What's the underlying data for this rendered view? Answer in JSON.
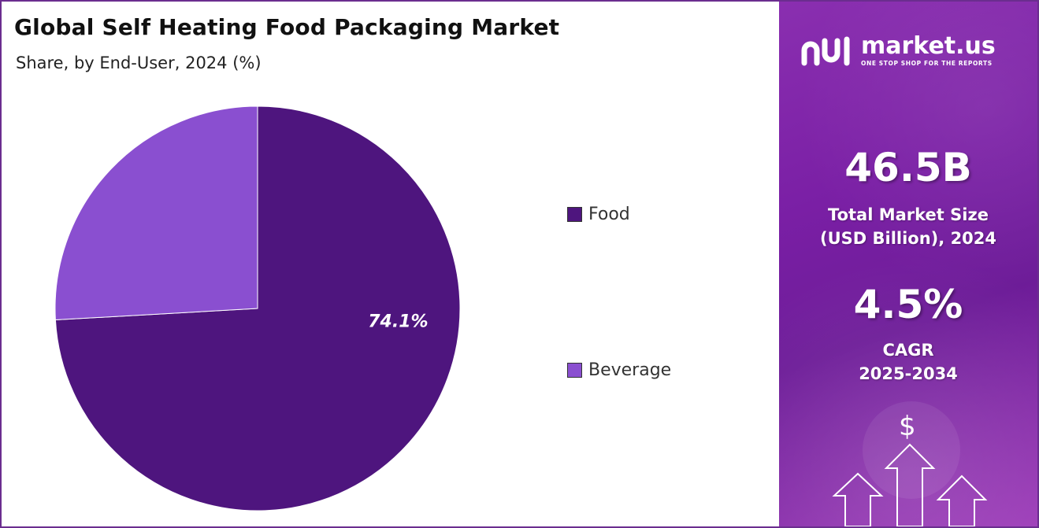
{
  "header": {
    "title": "Global Self Heating Food Packaging Market",
    "subtitle": "Share, by End-User, 2024 (%)"
  },
  "chart_data": {
    "type": "pie",
    "title": "Global Self Heating Food Packaging Market",
    "subtitle": "Share, by End-User, 2024 (%)",
    "categories": [
      "Food",
      "Beverage"
    ],
    "values": [
      74.1,
      25.9
    ],
    "colors": [
      "#4e157e",
      "#8a4fd0"
    ],
    "data_labels": [
      "74.1%",
      ""
    ],
    "legend_position": "right"
  },
  "legend": {
    "items": [
      {
        "label": "Food",
        "color": "#4e157e"
      },
      {
        "label": "Beverage",
        "color": "#8a4fd0"
      }
    ]
  },
  "sidebar": {
    "brand": "market.us",
    "tagline": "ONE STOP SHOP FOR THE REPORTS",
    "market_size_value": "46.5B",
    "market_size_label_line1": "Total Market Size",
    "market_size_label_line2": "(USD Billion), 2024",
    "cagr_value": "4.5%",
    "cagr_label_line1": "CAGR",
    "cagr_label_line2": "2025-2034",
    "dollar_symbol": "$",
    "accent_color": "#7a1fa5"
  }
}
